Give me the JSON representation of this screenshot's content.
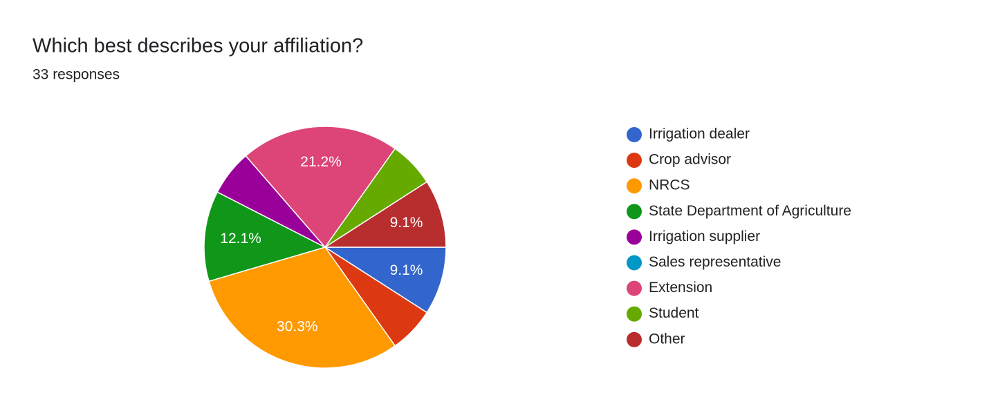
{
  "chart_data": {
    "type": "pie",
    "title": "Which best describes your affiliation?",
    "subtitle": "33 responses",
    "categories": [
      "Irrigation dealer",
      "Crop advisor",
      "NRCS",
      "State Department of Agriculture",
      "Irrigation supplier",
      "Sales representative",
      "Extension",
      "Student",
      "Other"
    ],
    "values": [
      9.1,
      6.1,
      30.3,
      12.1,
      6.1,
      0,
      21.2,
      6.1,
      9.1
    ],
    "value_labels": [
      "9.1%",
      null,
      "30.3%",
      "12.1%",
      null,
      null,
      "21.2%",
      null,
      "9.1%"
    ],
    "colors": [
      "#3366cc",
      "#dc3912",
      "#ff9900",
      "#109618",
      "#990099",
      "#0099c6",
      "#dd4477",
      "#66aa00",
      "#b82e2e"
    ],
    "legend": "right"
  }
}
